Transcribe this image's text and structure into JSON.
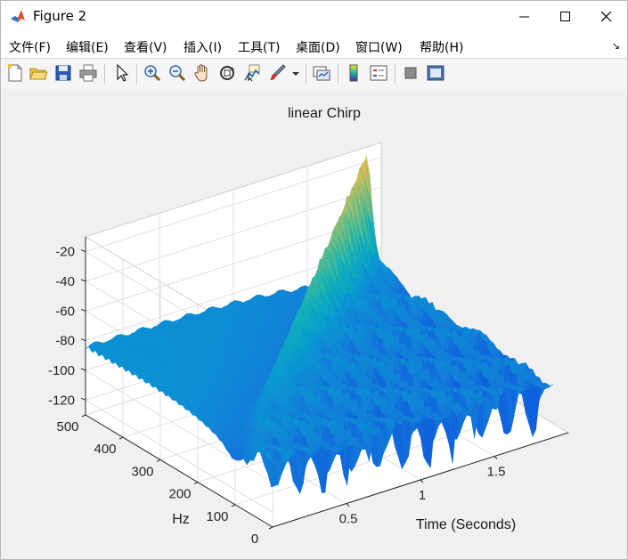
{
  "window": {
    "title": "Figure 2"
  },
  "menu": {
    "items": [
      "文件(F)",
      "编辑(E)",
      "查看(V)",
      "插入(I)",
      "工具(T)",
      "桌面(D)",
      "窗口(W)",
      "帮助(H)"
    ]
  },
  "toolbar": {
    "buttons": [
      "new-figure-icon",
      "open-folder-icon",
      "save-icon",
      "print-icon",
      "pointer-icon",
      "zoom-in-icon",
      "zoom-out-icon",
      "pan-hand-icon",
      "rotate-3d-icon",
      "data-cursor-icon",
      "brush-icon",
      "link-plot-icon",
      "colorbar-icon",
      "legend-icon",
      "hide-plot-tools-icon",
      "show-plot-tools-icon"
    ]
  },
  "chart_data": {
    "type": "surface",
    "title": "linear Chirp",
    "xlabel": "Time (Seconds)",
    "ylabel": "Hz",
    "zlabel": "",
    "x_ticks": [
      "0.5",
      "1",
      "1.5"
    ],
    "y_ticks": [
      "0",
      "100",
      "200",
      "300",
      "400",
      "500"
    ],
    "z_ticks": [
      "-20",
      "-40",
      "-60",
      "-80",
      "-100",
      "-120"
    ],
    "xlim": [
      0,
      2
    ],
    "ylim": [
      0,
      500
    ],
    "zlim": [
      -130,
      -10
    ],
    "grid": true,
    "colormap": "parula",
    "chirp_ridge": [
      {
        "t": 0,
        "hz": 100,
        "db": -100
      },
      {
        "t": 1.9,
        "hz": 500,
        "db": -15
      }
    ]
  }
}
